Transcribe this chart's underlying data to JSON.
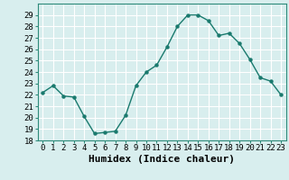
{
  "x": [
    0,
    1,
    2,
    3,
    4,
    5,
    6,
    7,
    8,
    9,
    10,
    11,
    12,
    13,
    14,
    15,
    16,
    17,
    18,
    19,
    20,
    21,
    22,
    23
  ],
  "y": [
    22.2,
    22.8,
    21.9,
    21.8,
    20.1,
    18.6,
    18.7,
    18.8,
    20.2,
    22.8,
    24.0,
    24.6,
    26.2,
    28.0,
    29.0,
    29.0,
    28.5,
    27.2,
    27.4,
    26.5,
    25.1,
    23.5,
    23.2,
    22.0
  ],
  "line_color": "#1a7a6e",
  "marker": "o",
  "marker_size": 2.2,
  "line_width": 1.0,
  "xlabel": "Humidex (Indice chaleur)",
  "ylim": [
    18,
    30
  ],
  "yticks": [
    18,
    19,
    20,
    21,
    22,
    23,
    24,
    25,
    26,
    27,
    28,
    29
  ],
  "xticks": [
    0,
    1,
    2,
    3,
    4,
    5,
    6,
    7,
    8,
    9,
    10,
    11,
    12,
    13,
    14,
    15,
    16,
    17,
    18,
    19,
    20,
    21,
    22,
    23
  ],
  "xtick_labels": [
    "0",
    "1",
    "2",
    "3",
    "4",
    "5",
    "6",
    "7",
    "8",
    "9",
    "10",
    "11",
    "12",
    "13",
    "14",
    "15",
    "16",
    "17",
    "18",
    "19",
    "20",
    "21",
    "22",
    "23"
  ],
  "bg_color": "#d8eeee",
  "grid_color": "#ffffff",
  "tick_fontsize": 6.5,
  "xlabel_fontsize": 8,
  "xlabel_fontweight": "bold",
  "spine_color": "#2e8b7a"
}
